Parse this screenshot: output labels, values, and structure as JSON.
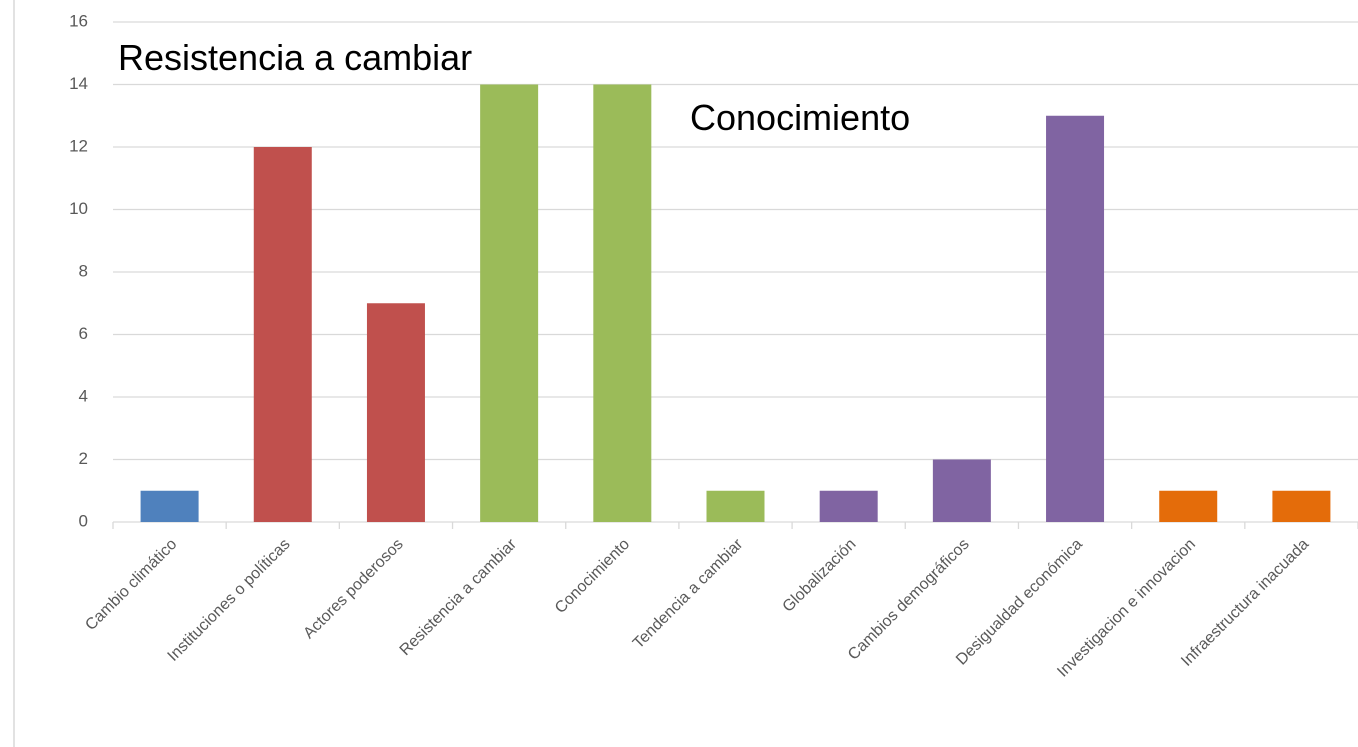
{
  "chart_data": {
    "type": "bar",
    "categories": [
      "Cambio climático",
      "Instituciones o políticas",
      "Actores poderosos",
      "Resistencia a cambiar",
      "Conocimiento",
      "Tendencia a cambiar",
      "Globalización",
      "Cambios demográficos",
      "Desigualdad económica",
      "Investigacion e innovacion",
      "Infraestructura inacuada"
    ],
    "values": [
      1,
      12,
      7,
      14,
      14,
      1,
      1,
      2,
      13,
      1,
      1
    ],
    "colors": [
      "#4f81bd",
      "#c0504d",
      "#c0504d",
      "#9bbb59",
      "#9bbb59",
      "#9bbb59",
      "#8064a2",
      "#8064a2",
      "#8064a2",
      "#e46c0a",
      "#e46c0a"
    ],
    "annotations": [
      "Resistencia a cambiar",
      "Conocimiento"
    ],
    "ylim": [
      0,
      16
    ],
    "yticks": [
      0,
      2,
      4,
      6,
      8,
      10,
      12,
      14,
      16
    ],
    "grid": true
  }
}
